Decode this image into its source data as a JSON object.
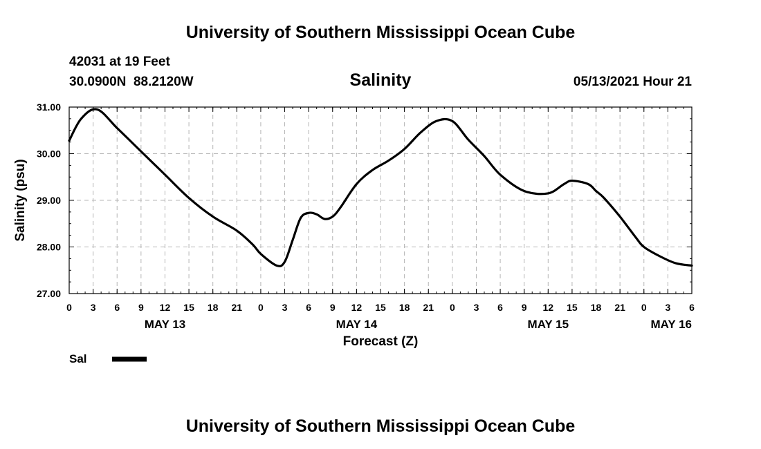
{
  "header": {
    "title_top": "University of Southern Mississippi Ocean Cube",
    "station_line": "42031 at 19 Feet",
    "coords_line": "30.0900N  88.2120W",
    "timestamp": "05/13/2021 Hour 21",
    "title_bottom": "University of Southern Mississippi Ocean Cube"
  },
  "legend": {
    "label": "Sal",
    "color": "#000000"
  },
  "chart_data": {
    "type": "line",
    "title": "Salinity",
    "xlabel": "Forecast (Z)",
    "ylabel": "Salinity (psu)",
    "xlim": [
      0,
      78
    ],
    "ylim": [
      27,
      31
    ],
    "grid": true,
    "yticks": [
      "27.00",
      "28.00",
      "29.00",
      "30.00",
      "31.00"
    ],
    "xtick_labels": [
      "0",
      "3",
      "6",
      "9",
      "12",
      "15",
      "18",
      "21",
      "0",
      "3",
      "6",
      "9",
      "12",
      "15",
      "18",
      "21",
      "0",
      "3",
      "6",
      "9",
      "12",
      "15",
      "18",
      "21",
      "0",
      "3",
      "6"
    ],
    "day_labels": [
      {
        "label": "MAY 13",
        "at": 12
      },
      {
        "label": "MAY 14",
        "at": 36
      },
      {
        "label": "MAY 15",
        "at": 60
      },
      {
        "label": "MAY 16",
        "at": 75
      }
    ],
    "series": [
      {
        "name": "Sal",
        "color": "#000000",
        "x": [
          0,
          1.5,
          3.5,
          6,
          9,
          12,
          15,
          18,
          21,
          23,
          24,
          26,
          27,
          28,
          29,
          30,
          31,
          32,
          33,
          34,
          36,
          38,
          40,
          42,
          44,
          46,
          48,
          50,
          52,
          54,
          57,
          60,
          62,
          63,
          65,
          66,
          67,
          69,
          71,
          72,
          74,
          76,
          78
        ],
        "values": [
          30.28,
          30.75,
          30.95,
          30.55,
          30.05,
          29.55,
          29.05,
          28.65,
          28.35,
          28.05,
          27.85,
          27.6,
          27.68,
          28.15,
          28.62,
          28.73,
          28.7,
          28.6,
          28.65,
          28.85,
          29.35,
          29.65,
          29.85,
          30.1,
          30.45,
          30.7,
          30.7,
          30.3,
          29.95,
          29.55,
          29.2,
          29.15,
          29.35,
          29.42,
          29.35,
          29.2,
          29.05,
          28.65,
          28.2,
          28.0,
          27.8,
          27.65,
          27.6
        ]
      }
    ]
  }
}
